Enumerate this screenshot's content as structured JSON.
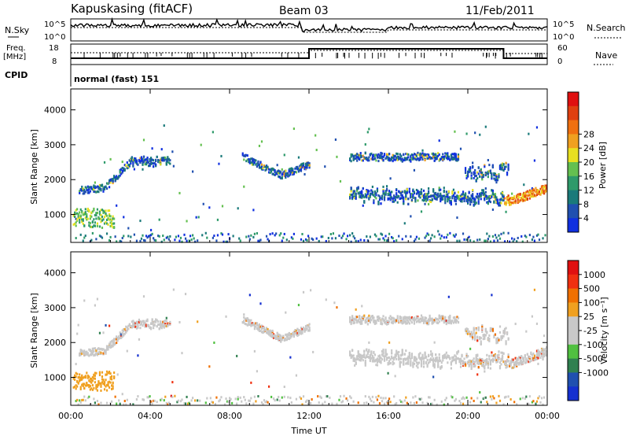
{
  "header": {
    "station": "Kapuskasing (fitACF)",
    "beam": "Beam 03",
    "date": "11/Feb/2011"
  },
  "panels": {
    "nsky_label": "N.Sky",
    "nsearch_label": "N.Search",
    "freq_label_top": "Freq.",
    "freq_label_bottom": "[MHz]",
    "nave_label": "Nave",
    "cpid_label": "CPID",
    "cpid_text": "normal (fast) 151",
    "noise_ticks_left": [
      "10^5",
      "10^0"
    ],
    "noise_ticks_right": [
      "10^5",
      "10^0"
    ],
    "freq_ticks_left": [
      "18",
      "8"
    ],
    "freq_ticks_right": [
      "60",
      "0"
    ]
  },
  "colors": {
    "power": [
      "#1030e0",
      "#2050b0",
      "#1a7a7a",
      "#2e9a6a",
      "#64c050",
      "#e8e020",
      "#f0a020",
      "#f07010",
      "#e04010",
      "#e01010"
    ],
    "velocity": [
      "#1530d0",
      "#2050b0",
      "#308050",
      "#50c040",
      "#c8c8c8",
      "#c8c8c8",
      "#f0a020",
      "#f07000",
      "#f03010",
      "#e01010"
    ]
  },
  "chart_data": [
    {
      "type": "heatmap",
      "name": "power",
      "title": "",
      "xlabel": "",
      "ylabel": "Slant Range [km]",
      "ylim": [
        200,
        4600
      ],
      "x_ticks": [
        "00:00",
        "04:00",
        "08:00",
        "12:00",
        "16:00",
        "20:00",
        "00:00"
      ],
      "y_ticks": [
        "1000",
        "2000",
        "3000",
        "4000"
      ],
      "colorbar_label": "Power [dB]",
      "colorbar_ticks": [
        "4",
        "8",
        "12",
        "16",
        "20",
        "24",
        "28"
      ]
    },
    {
      "type": "heatmap",
      "name": "velocity",
      "title": "",
      "xlabel": "Time UT",
      "ylabel": "Slant Range [km]",
      "ylim": [
        200,
        4600
      ],
      "x_ticks": [
        "00:00",
        "04:00",
        "08:00",
        "12:00",
        "16:00",
        "20:00",
        "00:00"
      ],
      "y_ticks": [
        "1000",
        "2000",
        "3000",
        "4000"
      ],
      "colorbar_label": "Velocity [m s⁻¹]",
      "colorbar_ticks": [
        "1000",
        "500",
        "100",
        "25",
        "-25",
        "-100",
        "-500",
        "-1000"
      ]
    }
  ]
}
